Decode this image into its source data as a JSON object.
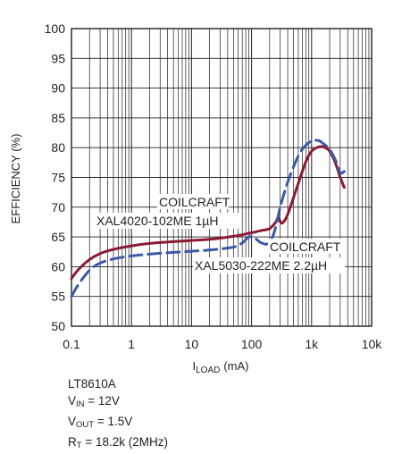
{
  "chart_data": {
    "type": "line",
    "x_scale": "log",
    "xlim": [
      0.1,
      10000
    ],
    "ylim": [
      50,
      100
    ],
    "grid": true,
    "xlabel": {
      "main": "I",
      "sub": "LOAD",
      "unit": "(mA)"
    },
    "ylabel": "EFFICIENCY (%)",
    "x_tick_labels": [
      "0.1",
      "1",
      "10",
      "100",
      "1k",
      "10k"
    ],
    "x_tick_values": [
      0.1,
      1,
      10,
      100,
      1000,
      10000
    ],
    "y_ticks": [
      50,
      55,
      60,
      65,
      70,
      75,
      80,
      85,
      90,
      95,
      100
    ],
    "series": [
      {
        "color": "#8b1a34",
        "line_style": "solid",
        "x": [
          0.1,
          0.13,
          0.2,
          0.3,
          0.5,
          1,
          2,
          5,
          10,
          20,
          50,
          100,
          150,
          200,
          250,
          280,
          320,
          400,
          600,
          800,
          1000,
          1300,
          1600,
          2000,
          2500,
          3000,
          3500
        ],
        "y": [
          58,
          59.5,
          61.2,
          62.2,
          62.9,
          63.5,
          63.9,
          64.2,
          64.4,
          64.6,
          65.1,
          65.7,
          66.1,
          66.4,
          67.4,
          68.2,
          67.3,
          68.8,
          74,
          77.6,
          79.4,
          80.1,
          80.1,
          79.4,
          77.4,
          75,
          73.3
        ]
      },
      {
        "color": "#3a5aa6",
        "line_style": "dashed",
        "x": [
          0.1,
          0.13,
          0.2,
          0.3,
          0.5,
          1,
          2,
          5,
          10,
          20,
          50,
          70,
          90,
          110,
          140,
          180,
          220,
          260,
          300,
          400,
          600,
          800,
          1000,
          1300,
          1600,
          2000,
          2500,
          3000,
          3500
        ],
        "y": [
          55,
          57,
          59.4,
          60.6,
          61.3,
          61.8,
          62.1,
          62.4,
          62.6,
          62.8,
          63.3,
          64,
          65,
          64.9,
          64.1,
          63.8,
          64.8,
          67.2,
          70,
          74.2,
          78.6,
          80.4,
          81.1,
          81.2,
          80.6,
          79.7,
          77.9,
          75.8,
          76
        ]
      }
    ],
    "annotations": [
      {
        "lines": [
          "COILCRAFT",
          "XAL4020-102ME 1µH"
        ]
      },
      {
        "lines": [
          "COILCRAFT",
          "XAL5030-222ME 2.2µH"
        ]
      }
    ]
  },
  "notes": {
    "part": "LT8610A",
    "vin": {
      "main": "V",
      "sub": "IN",
      "rest": " = 12V"
    },
    "vout": {
      "main": "V",
      "sub": "OUT",
      "rest": " = 1.5V"
    },
    "rt": {
      "main": "R",
      "sub": "T",
      "rest": " = 18.2k (2MHz)"
    }
  }
}
